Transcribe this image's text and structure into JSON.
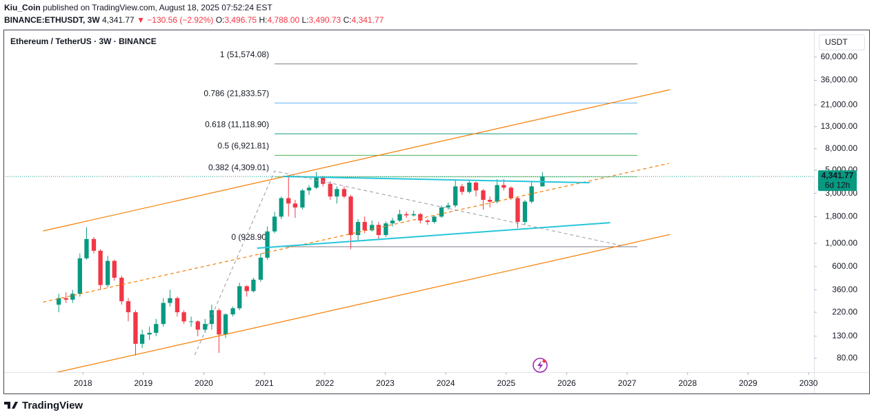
{
  "header": {
    "author": "Kiu_Coin",
    "published": "published on TradingView.com, August 18, 2025 07:52:24 EST",
    "symbol": "BINANCE:ETHUSDT, 3W",
    "price": "4,341.77",
    "change": "▼ −130.56 (−2.92%)",
    "o_label": "O:",
    "o": "3,496.75",
    "h_label": "H:",
    "h": "4,788.00",
    "l_label": "L:",
    "l": "3,490.73",
    "c_label": "C:",
    "c": "4,341.77"
  },
  "footer": {
    "brand": "TradingView"
  },
  "chart_data": {
    "type": "candlestick",
    "title": "Ethereum / TetherUS · 3W · BINANCE",
    "currency": "USDT",
    "log_scale": true,
    "up_color": "#089981",
    "down_color": "#f23645",
    "xlim": [
      2016.72,
      2030.09
    ],
    "xticks": [
      2018,
      2019,
      2020,
      2021,
      2022,
      2023,
      2024,
      2025,
      2026,
      2027,
      2028,
      2029,
      2030
    ],
    "ylim": [
      59,
      101600
    ],
    "yticks": [
      {
        "value": 60000,
        "label": "60,000.00"
      },
      {
        "value": 36000,
        "label": "36,000.00"
      },
      {
        "value": 21000,
        "label": "21,000.00"
      },
      {
        "value": 13000,
        "label": "13,000.00"
      },
      {
        "value": 8000,
        "label": "8,000.00"
      },
      {
        "value": 5000,
        "label": "5,000.00"
      },
      {
        "value": 3000,
        "label": "3,000.00"
      },
      {
        "value": 1800,
        "label": "1,800.00"
      },
      {
        "value": 1000,
        "label": "1,000.00"
      },
      {
        "value": 600,
        "label": "600.00"
      },
      {
        "value": 360,
        "label": "360.00"
      },
      {
        "value": 220,
        "label": "220.00"
      },
      {
        "value": 130,
        "label": "130.00"
      },
      {
        "value": 80,
        "label": "80.00"
      }
    ],
    "x": [
      2017.6,
      2017.72,
      2017.83,
      2017.95,
      2018.06,
      2018.18,
      2018.29,
      2018.41,
      2018.52,
      2018.64,
      2018.75,
      2018.87,
      2018.98,
      2019.1,
      2019.21,
      2019.33,
      2019.44,
      2019.56,
      2019.67,
      2019.79,
      2019.9,
      2020.02,
      2020.13,
      2020.25,
      2020.36,
      2020.48,
      2020.59,
      2020.71,
      2020.82,
      2020.94,
      2021.05,
      2021.17,
      2021.28,
      2021.4,
      2021.51,
      2021.63,
      2021.74,
      2021.86,
      2021.97,
      2022.09,
      2022.2,
      2022.32,
      2022.43,
      2022.55,
      2022.66,
      2022.78,
      2022.89,
      2023.01,
      2023.12,
      2023.24,
      2023.35,
      2023.47,
      2023.58,
      2023.7,
      2023.81,
      2023.93,
      2024.04,
      2024.16,
      2024.27,
      2024.39,
      2024.5,
      2024.62,
      2024.73,
      2024.85,
      2024.96,
      2025.08,
      2025.19,
      2025.31,
      2025.42,
      2025.6
    ],
    "open": [
      260,
      300,
      290,
      330,
      720,
      1100,
      850,
      400,
      680,
      470,
      280,
      220,
      110,
      135,
      140,
      170,
      270,
      300,
      220,
      180,
      180,
      150,
      170,
      230,
      135,
      210,
      240,
      390,
      350,
      450,
      730,
      1300,
      1800,
      2700,
      2400,
      2200,
      3200,
      3400,
      4300,
      3700,
      2800,
      3300,
      2800,
      1200,
      1600,
      1330,
      1500,
      1200,
      1550,
      1650,
      1900,
      1850,
      1900,
      1650,
      1600,
      1800,
      2200,
      2300,
      3500,
      3100,
      3800,
      3200,
      2600,
      2500,
      3600,
      3400,
      2700,
      1600,
      2500,
      3496.75
    ],
    "high": [
      330,
      340,
      360,
      800,
      1420,
      1150,
      880,
      760,
      700,
      490,
      300,
      230,
      150,
      160,
      190,
      300,
      360,
      310,
      230,
      200,
      185,
      190,
      260,
      240,
      215,
      250,
      420,
      400,
      470,
      800,
      1450,
      2000,
      2800,
      4300,
      2600,
      3300,
      3600,
      4800,
      4400,
      3900,
      3500,
      3500,
      2900,
      1700,
      1800,
      1650,
      1600,
      1620,
      1750,
      2100,
      2000,
      2050,
      1950,
      1700,
      1850,
      2300,
      2450,
      4000,
      3700,
      4000,
      3900,
      3300,
      2800,
      4100,
      4100,
      3500,
      2800,
      2600,
      3900,
      4788
    ],
    "low": [
      220,
      270,
      270,
      310,
      700,
      800,
      360,
      380,
      440,
      260,
      180,
      85,
      100,
      120,
      130,
      160,
      250,
      200,
      170,
      160,
      130,
      140,
      150,
      90,
      125,
      200,
      230,
      310,
      340,
      430,
      700,
      1250,
      1700,
      1800,
      1750,
      2100,
      2900,
      3300,
      3500,
      2600,
      2400,
      2700,
      880,
      1050,
      1250,
      1300,
      1100,
      1150,
      1450,
      1600,
      1750,
      1800,
      1550,
      1500,
      1550,
      1750,
      2100,
      2200,
      2900,
      3000,
      2800,
      2100,
      2200,
      2400,
      3200,
      2600,
      1400,
      1500,
      2400,
      3490.73
    ],
    "close": [
      300,
      290,
      330,
      720,
      1100,
      850,
      400,
      680,
      470,
      280,
      220,
      110,
      135,
      140,
      170,
      270,
      300,
      220,
      180,
      180,
      150,
      170,
      230,
      135,
      210,
      240,
      390,
      350,
      450,
      730,
      1300,
      1800,
      2700,
      2400,
      2200,
      3200,
      3400,
      4300,
      3700,
      2800,
      3300,
      2800,
      1200,
      1600,
      1330,
      1500,
      1200,
      1550,
      1650,
      1900,
      1850,
      1900,
      1650,
      1600,
      1800,
      2200,
      2300,
      3500,
      3100,
      3800,
      3200,
      2600,
      2500,
      3600,
      3400,
      2700,
      1600,
      2500,
      3500,
      4341.77
    ],
    "fib_x": [
      2021.17,
      2027.17
    ],
    "fib_levels": [
      {
        "label": "1 (51,574.08)",
        "value": 51574.08,
        "color": "#787b86"
      },
      {
        "label": "0.786 (21,833.57)",
        "value": 21833.57,
        "color": "#64b5f6"
      },
      {
        "label": "0.618 (11,118.90)",
        "value": 11118.9,
        "color": "#089981"
      },
      {
        "label": "0.5 (6,921.81)",
        "value": 6921.81,
        "color": "#4caf50"
      },
      {
        "label": "0.382 (4,309.01)",
        "value": 4309.01,
        "color": "#81c784"
      },
      {
        "label": "0 (928.90)",
        "value": 928.9,
        "color": "#787b86"
      }
    ],
    "lines": [
      {
        "color": "#f57c00",
        "dashed": false,
        "width": 1.2,
        "x": [
          2017.34,
          2027.71
        ],
        "y": [
          1313,
          29300
        ]
      },
      {
        "color": "#f57c00",
        "dashed": false,
        "width": 1.2,
        "x": [
          2017.41,
          2027.71
        ],
        "y": [
          56,
          1217
        ]
      },
      {
        "color": "#f57c00",
        "dashed": true,
        "width": 1.2,
        "x": [
          2017.34,
          2027.69
        ],
        "y": [
          275,
          5800
        ]
      },
      {
        "color": "#26c6da",
        "dashed": false,
        "width": 2,
        "x": [
          2021.31,
          2026.38
        ],
        "y": [
          4350,
          3790
        ]
      },
      {
        "color": "#26c6da",
        "dashed": false,
        "width": 2,
        "x": [
          2020.88,
          2026.72
        ],
        "y": [
          900,
          1575
        ]
      },
      {
        "color": "#9598a1",
        "dashed": true,
        "width": 1,
        "x": [
          2019.85,
          2021.17,
          2026.95
        ],
        "y": [
          86,
          4900,
          940
        ]
      }
    ],
    "last_price": {
      "value": 4341.77,
      "label": "4,341.77",
      "countdown": "6d 12h",
      "color": "#089981"
    }
  }
}
